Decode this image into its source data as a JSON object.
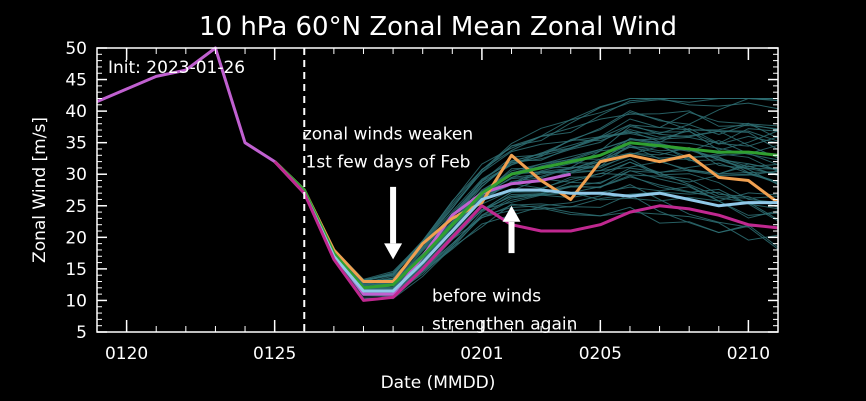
{
  "chart_data": {
    "type": "line",
    "title": "10 hPa  60°N   Zonal Mean Zonal Wind",
    "xlabel": "Date (MMDD)",
    "ylabel": "Zonal  Wind   [m/s]",
    "init_label": "Init: 2023-01-26",
    "xlim": [
      "2023-01-19",
      "2023-02-11"
    ],
    "ylim": [
      5,
      50
    ],
    "x_ticks": [
      {
        "date": "2023-01-20",
        "label": "0120"
      },
      {
        "date": "2023-01-25",
        "label": "0125"
      },
      {
        "date": "2023-02-01",
        "label": "0201"
      },
      {
        "date": "2023-02-05",
        "label": "0205"
      },
      {
        "date": "2023-02-10",
        "label": "0210"
      }
    ],
    "y_ticks": [
      5,
      10,
      15,
      20,
      25,
      30,
      35,
      40,
      45,
      50
    ],
    "init_line_date": "2023-01-26",
    "colors": {
      "background": "#000000",
      "axes": "#ffffff",
      "ensemble": "#2e6f73",
      "observed": "#c060d0",
      "orange": "#f0a050",
      "green": "#30a030",
      "lightblue": "#90c8e8",
      "magenta": "#c02890"
    },
    "series": [
      {
        "color_key": "observed",
        "x": [
          "2023-01-19",
          "2023-01-20",
          "2023-01-21",
          "2023-01-22",
          "2023-01-23",
          "2023-01-24",
          "2023-01-25",
          "2023-01-26",
          "2023-01-27",
          "2023-01-28",
          "2023-01-29",
          "2023-01-30",
          "2023-01-31",
          "2023-02-01",
          "2023-02-02",
          "2023-02-03",
          "2023-02-04"
        ],
        "y": [
          41.5,
          43.5,
          45.5,
          46.5,
          50,
          35,
          32,
          27.5,
          17.5,
          11,
          11,
          17,
          23.5,
          27,
          28.5,
          29,
          30
        ]
      },
      {
        "color_key": "orange",
        "x": [
          "2023-01-25",
          "2023-01-26",
          "2023-01-27",
          "2023-01-28",
          "2023-01-29",
          "2023-01-30",
          "2023-01-31",
          "2023-02-01",
          "2023-02-02",
          "2023-02-03",
          "2023-02-04",
          "2023-02-05",
          "2023-02-06",
          "2023-02-07",
          "2023-02-08",
          "2023-02-09",
          "2023-02-10",
          "2023-02-11"
        ],
        "y": [
          32,
          27.5,
          18,
          13,
          13,
          19,
          23,
          25.5,
          33,
          29,
          26,
          32,
          33,
          32,
          33,
          29.5,
          29,
          25.5
        ]
      },
      {
        "color_key": "green",
        "x": [
          "2023-01-25",
          "2023-01-26",
          "2023-01-27",
          "2023-01-28",
          "2023-01-29",
          "2023-01-30",
          "2023-01-31",
          "2023-02-01",
          "2023-02-02",
          "2023-02-03",
          "2023-02-04",
          "2023-02-05",
          "2023-02-06",
          "2023-02-07",
          "2023-02-08",
          "2023-02-09",
          "2023-02-10",
          "2023-02-11"
        ],
        "y": [
          32,
          27.5,
          17.5,
          12,
          12.5,
          17,
          22,
          27,
          30,
          31,
          32,
          33,
          35,
          34.5,
          34,
          33.5,
          33.5,
          33
        ]
      },
      {
        "color_key": "lightblue",
        "x": [
          "2023-01-25",
          "2023-01-26",
          "2023-01-27",
          "2023-01-28",
          "2023-01-29",
          "2023-01-30",
          "2023-01-31",
          "2023-02-01",
          "2023-02-02",
          "2023-02-03",
          "2023-02-04",
          "2023-02-05",
          "2023-02-06",
          "2023-02-07",
          "2023-02-08",
          "2023-02-09",
          "2023-02-10",
          "2023-02-11"
        ],
        "y": [
          32,
          27,
          17,
          11.5,
          11.5,
          16,
          21,
          26,
          27.5,
          27.5,
          27,
          27,
          26.5,
          27,
          26,
          25,
          25.5,
          25.5
        ]
      },
      {
        "color_key": "magenta",
        "x": [
          "2023-01-25",
          "2023-01-26",
          "2023-01-27",
          "2023-01-28",
          "2023-01-29",
          "2023-01-30",
          "2023-01-31",
          "2023-02-01",
          "2023-02-02",
          "2023-02-03",
          "2023-02-04",
          "2023-02-05",
          "2023-02-06",
          "2023-02-07",
          "2023-02-08",
          "2023-02-09",
          "2023-02-10",
          "2023-02-11"
        ],
        "y": [
          32,
          27,
          16.5,
          10,
          10.5,
          15,
          20,
          25,
          22,
          21,
          21,
          22,
          24,
          25,
          24.5,
          23.5,
          22,
          21.5
        ]
      }
    ],
    "annotations": [
      {
        "lines": [
          "zonal winds weaken",
          "1st few days of Feb"
        ],
        "x": "2023-01-29",
        "y": 35.5,
        "arrow_from": 28,
        "arrow_to": 16.5,
        "arrow_x": "2023-01-29"
      },
      {
        "lines": [
          "before winds",
          "strengthen again"
        ],
        "x": "2023-02-01",
        "y": 9.8,
        "arrow_from": 17.5,
        "arrow_to": 25,
        "arrow_x": "2023-02-02"
      }
    ]
  }
}
